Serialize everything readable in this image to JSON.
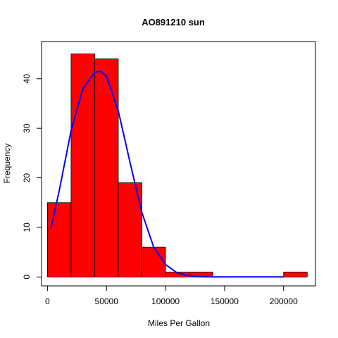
{
  "chart_data": {
    "type": "bar",
    "title": "AO891210 sun",
    "xlabel": "Miles Per Gallon",
    "ylabel": "Frequency",
    "bin_edges": [
      0,
      20000,
      40000,
      60000,
      80000,
      100000,
      120000,
      140000,
      160000,
      180000,
      200000,
      220000
    ],
    "values": [
      15,
      45,
      44,
      19,
      6,
      1,
      1,
      0,
      0,
      0,
      1
    ],
    "xlim": [
      -5000,
      227000
    ],
    "ylim": [
      -1.8,
      47.5
    ],
    "xticks": [
      0,
      50000,
      100000,
      150000,
      200000
    ],
    "yticks": [
      0,
      10,
      20,
      30,
      40
    ],
    "bar_color": "#ff0000",
    "bar_border_color": "#000000",
    "curve": {
      "type": "line",
      "color": "#0000ff",
      "x": [
        3000,
        10000,
        20000,
        30000,
        40000,
        45000,
        50000,
        60000,
        70000,
        80000,
        90000,
        100000,
        110000,
        120000,
        130000,
        140000,
        200000
      ],
      "y": [
        9.8,
        17.5,
        29.5,
        38.0,
        41.3,
        41.5,
        40.5,
        33.5,
        23.0,
        13.0,
        6.0,
        2.5,
        0.8,
        0.2,
        0.05,
        0.0,
        0.0
      ]
    },
    "grid": false,
    "legend": "none"
  }
}
